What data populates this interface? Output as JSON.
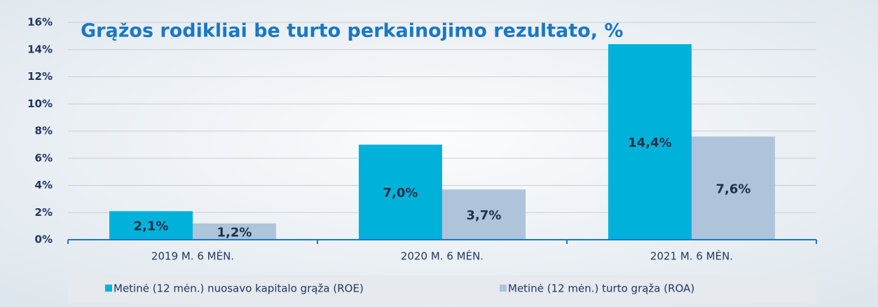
{
  "chart_data": {
    "type": "bar",
    "title": "Grąžos rodikliai be turto perkainojimo rezultato, %",
    "categories": [
      "2019 M. 6 MĖN.",
      "2020 M. 6 MĖN.",
      "2021 M. 6 MĖN."
    ],
    "series": [
      {
        "name": "Metinė (12 mėn.) nuosavo kapitalo grąža (ROE)",
        "color": "#00b2d9",
        "values": [
          2.1,
          7.0,
          14.4
        ],
        "value_labels": [
          "2,1%",
          "7,0%",
          "14,4%"
        ]
      },
      {
        "name": "Metinė  (12 mėn.) turto grąža (ROA)",
        "color": "#adc4da",
        "values": [
          1.2,
          3.7,
          7.6
        ],
        "value_labels": [
          "1,2%",
          "3,7%",
          "7,6%"
        ]
      }
    ],
    "ylim": [
      0,
      16
    ],
    "yticks": [
      {
        "value": 0,
        "label": "0%"
      },
      {
        "value": 2,
        "label": "2%"
      },
      {
        "value": 4,
        "label": "4%"
      },
      {
        "value": 6,
        "label": "6%"
      },
      {
        "value": 8,
        "label": "8%"
      },
      {
        "value": 10,
        "label": "10%"
      },
      {
        "value": 12,
        "label": "12%"
      },
      {
        "value": 14,
        "label": "14%"
      },
      {
        "value": 16,
        "label": "16%"
      }
    ],
    "grid": true,
    "legend": "bottom"
  }
}
